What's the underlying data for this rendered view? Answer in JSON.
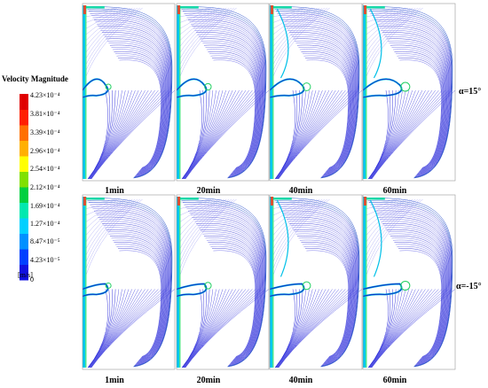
{
  "legend": {
    "title": "Velocity Magnitude",
    "unit": "[m/s]",
    "ticks": [
      "4.23×10⁻⁴",
      "3.81×10⁻⁴",
      "3.39×10⁻⁴",
      "2.96×10⁻⁴",
      "2.54×10⁻⁴",
      "2.12×10⁻⁴",
      "1.69×10⁻⁴",
      "1.27×10⁻⁴",
      "8.47×10⁻⁵",
      "4.23×10⁻⁵",
      "0"
    ],
    "colors": [
      "#1010e0",
      "#0040ff",
      "#0090ff",
      "#00d0ff",
      "#00e8b0",
      "#00d040",
      "#80e000",
      "#ffff00",
      "#ffb000",
      "#ff7000",
      "#ff2000",
      "#e00000"
    ]
  },
  "rows": [
    {
      "angle_label": "α=15°",
      "times": [
        "1min",
        "20min",
        "40min",
        "60min"
      ]
    },
    {
      "angle_label": "α=-15°",
      "times": [
        "1min",
        "20min",
        "40min",
        "60min"
      ]
    }
  ]
}
